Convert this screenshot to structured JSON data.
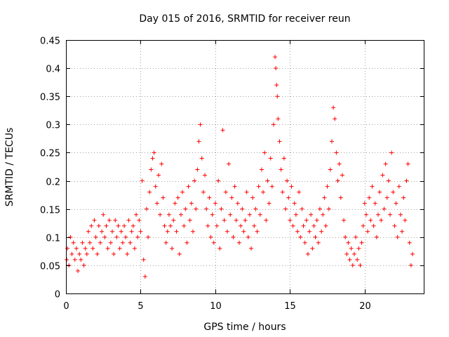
{
  "chart_data": {
    "type": "scatter",
    "title": "Day 015 of 2016, SRMTID for receiver reun",
    "xlabel": "GPS time / hours",
    "ylabel": "SRMTID / TECUs",
    "xlim": [
      0,
      24
    ],
    "ylim": [
      0,
      0.45
    ],
    "xticks": [
      0,
      5,
      10,
      15,
      20
    ],
    "xtick_labels": [
      "0",
      "5",
      "10",
      "15",
      "20"
    ],
    "yticks": [
      0,
      0.05,
      0.1,
      0.15,
      0.2,
      0.25,
      0.3,
      0.35,
      0.4,
      0.45
    ],
    "ytick_labels": [
      "0",
      "0.05",
      "0.1",
      "0.15",
      "0.2",
      "0.25",
      "0.3",
      "0.35",
      "0.4",
      "0.45"
    ],
    "grid": true,
    "marker": "plus",
    "color": "#ff0000",
    "series": [
      {
        "name": "SRMTID",
        "points": [
          [
            0.05,
            0.06
          ],
          [
            0.1,
            0.08
          ],
          [
            0.2,
            0.05
          ],
          [
            0.3,
            0.1
          ],
          [
            0.4,
            0.07
          ],
          [
            0.5,
            0.09
          ],
          [
            0.6,
            0.06
          ],
          [
            0.7,
            0.08
          ],
          [
            0.8,
            0.04
          ],
          [
            0.9,
            0.07
          ],
          [
            1.0,
            0.06
          ],
          [
            1.1,
            0.09
          ],
          [
            1.2,
            0.05
          ],
          [
            1.3,
            0.08
          ],
          [
            1.4,
            0.07
          ],
          [
            1.5,
            0.11
          ],
          [
            1.6,
            0.09
          ],
          [
            1.7,
            0.12
          ],
          [
            1.8,
            0.08
          ],
          [
            1.9,
            0.13
          ],
          [
            2.0,
            0.1
          ],
          [
            2.1,
            0.07
          ],
          [
            2.2,
            0.12
          ],
          [
            2.3,
            0.09
          ],
          [
            2.4,
            0.11
          ],
          [
            2.5,
            0.14
          ],
          [
            2.6,
            0.1
          ],
          [
            2.7,
            0.12
          ],
          [
            2.8,
            0.08
          ],
          [
            2.9,
            0.13
          ],
          [
            3.0,
            0.09
          ],
          [
            3.1,
            0.11
          ],
          [
            3.2,
            0.07
          ],
          [
            3.3,
            0.13
          ],
          [
            3.4,
            0.1
          ],
          [
            3.5,
            0.12
          ],
          [
            3.6,
            0.08
          ],
          [
            3.7,
            0.11
          ],
          [
            3.8,
            0.09
          ],
          [
            3.9,
            0.12
          ],
          [
            4.0,
            0.1
          ],
          [
            4.1,
            0.07
          ],
          [
            4.2,
            0.13
          ],
          [
            4.3,
            0.09
          ],
          [
            4.4,
            0.11
          ],
          [
            4.5,
            0.12
          ],
          [
            4.6,
            0.08
          ],
          [
            4.7,
            0.14
          ],
          [
            4.8,
            0.1
          ],
          [
            4.9,
            0.13
          ],
          [
            5.0,
            0.11
          ],
          [
            5.1,
            0.2
          ],
          [
            5.2,
            0.06
          ],
          [
            5.3,
            0.03
          ],
          [
            5.4,
            0.15
          ],
          [
            5.5,
            0.1
          ],
          [
            5.6,
            0.18
          ],
          [
            5.7,
            0.22
          ],
          [
            5.8,
            0.24
          ],
          [
            5.9,
            0.25
          ],
          [
            6.0,
            0.19
          ],
          [
            6.1,
            0.16
          ],
          [
            6.2,
            0.21
          ],
          [
            6.3,
            0.14
          ],
          [
            6.4,
            0.23
          ],
          [
            6.5,
            0.17
          ],
          [
            6.6,
            0.12
          ],
          [
            6.7,
            0.09
          ],
          [
            6.8,
            0.11
          ],
          [
            6.9,
            0.14
          ],
          [
            7.0,
            0.12
          ],
          [
            7.1,
            0.08
          ],
          [
            7.2,
            0.13
          ],
          [
            7.3,
            0.16
          ],
          [
            7.4,
            0.11
          ],
          [
            7.5,
            0.17
          ],
          [
            7.6,
            0.07
          ],
          [
            7.7,
            0.14
          ],
          [
            7.8,
            0.18
          ],
          [
            7.9,
            0.12
          ],
          [
            8.0,
            0.15
          ],
          [
            8.1,
            0.09
          ],
          [
            8.2,
            0.19
          ],
          [
            8.3,
            0.13
          ],
          [
            8.4,
            0.16
          ],
          [
            8.5,
            0.11
          ],
          [
            8.6,
            0.2
          ],
          [
            8.7,
            0.15
          ],
          [
            8.8,
            0.22
          ],
          [
            8.9,
            0.27
          ],
          [
            9.0,
            0.3
          ],
          [
            9.1,
            0.24
          ],
          [
            9.2,
            0.18
          ],
          [
            9.3,
            0.21
          ],
          [
            9.4,
            0.15
          ],
          [
            9.5,
            0.12
          ],
          [
            9.6,
            0.17
          ],
          [
            9.7,
            0.1
          ],
          [
            9.8,
            0.14
          ],
          [
            9.9,
            0.09
          ],
          [
            10.0,
            0.16
          ],
          [
            10.1,
            0.12
          ],
          [
            10.2,
            0.2
          ],
          [
            10.3,
            0.08
          ],
          [
            10.4,
            0.15
          ],
          [
            10.5,
            0.29
          ],
          [
            10.6,
            0.13
          ],
          [
            10.7,
            0.18
          ],
          [
            10.8,
            0.11
          ],
          [
            10.9,
            0.23
          ],
          [
            11.0,
            0.14
          ],
          [
            11.1,
            0.17
          ],
          [
            11.2,
            0.1
          ],
          [
            11.3,
            0.19
          ],
          [
            11.4,
            0.13
          ],
          [
            11.5,
            0.16
          ],
          [
            11.6,
            0.09
          ],
          [
            11.7,
            0.12
          ],
          [
            11.8,
            0.15
          ],
          [
            11.9,
            0.11
          ],
          [
            12.0,
            0.13
          ],
          [
            12.1,
            0.18
          ],
          [
            12.2,
            0.1
          ],
          [
            12.3,
            0.14
          ],
          [
            12.4,
            0.08
          ],
          [
            12.5,
            0.17
          ],
          [
            12.6,
            0.12
          ],
          [
            12.7,
            0.15
          ],
          [
            12.8,
            0.11
          ],
          [
            12.9,
            0.19
          ],
          [
            13.0,
            0.14
          ],
          [
            13.1,
            0.22
          ],
          [
            13.2,
            0.18
          ],
          [
            13.3,
            0.25
          ],
          [
            13.4,
            0.13
          ],
          [
            13.5,
            0.2
          ],
          [
            13.6,
            0.16
          ],
          [
            13.7,
            0.24
          ],
          [
            13.8,
            0.19
          ],
          [
            13.9,
            0.3
          ],
          [
            14.0,
            0.42
          ],
          [
            14.05,
            0.4
          ],
          [
            14.1,
            0.37
          ],
          [
            14.15,
            0.35
          ],
          [
            14.2,
            0.31
          ],
          [
            14.3,
            0.27
          ],
          [
            14.4,
            0.22
          ],
          [
            14.5,
            0.18
          ],
          [
            14.6,
            0.24
          ],
          [
            14.7,
            0.15
          ],
          [
            14.8,
            0.2
          ],
          [
            14.9,
            0.17
          ],
          [
            15.0,
            0.13
          ],
          [
            15.1,
            0.19
          ],
          [
            15.2,
            0.12
          ],
          [
            15.3,
            0.16
          ],
          [
            15.4,
            0.14
          ],
          [
            15.5,
            0.11
          ],
          [
            15.6,
            0.18
          ],
          [
            15.7,
            0.1
          ],
          [
            15.8,
            0.15
          ],
          [
            15.9,
            0.12
          ],
          [
            16.0,
            0.09
          ],
          [
            16.1,
            0.13
          ],
          [
            16.2,
            0.07
          ],
          [
            16.3,
            0.11
          ],
          [
            16.4,
            0.14
          ],
          [
            16.5,
            0.08
          ],
          [
            16.6,
            0.12
          ],
          [
            16.7,
            0.1
          ],
          [
            16.8,
            0.13
          ],
          [
            16.9,
            0.09
          ],
          [
            17.0,
            0.15
          ],
          [
            17.1,
            0.11
          ],
          [
            17.2,
            0.14
          ],
          [
            17.3,
            0.17
          ],
          [
            17.4,
            0.12
          ],
          [
            17.5,
            0.19
          ],
          [
            17.6,
            0.15
          ],
          [
            17.7,
            0.22
          ],
          [
            17.8,
            0.27
          ],
          [
            17.9,
            0.33
          ],
          [
            18.0,
            0.31
          ],
          [
            18.1,
            0.25
          ],
          [
            18.2,
            0.2
          ],
          [
            18.3,
            0.23
          ],
          [
            18.4,
            0.17
          ],
          [
            18.5,
            0.21
          ],
          [
            18.6,
            0.13
          ],
          [
            18.7,
            0.1
          ],
          [
            18.8,
            0.07
          ],
          [
            18.9,
            0.09
          ],
          [
            19.0,
            0.06
          ],
          [
            19.1,
            0.08
          ],
          [
            19.2,
            0.05
          ],
          [
            19.3,
            0.07
          ],
          [
            19.4,
            0.1
          ],
          [
            19.5,
            0.06
          ],
          [
            19.6,
            0.08
          ],
          [
            19.7,
            0.05
          ],
          [
            19.8,
            0.09
          ],
          [
            19.9,
            0.12
          ],
          [
            20.0,
            0.16
          ],
          [
            20.1,
            0.14
          ],
          [
            20.2,
            0.11
          ],
          [
            20.3,
            0.17
          ],
          [
            20.4,
            0.13
          ],
          [
            20.5,
            0.19
          ],
          [
            20.6,
            0.12
          ],
          [
            20.7,
            0.16
          ],
          [
            20.8,
            0.1
          ],
          [
            20.9,
            0.14
          ],
          [
            21.0,
            0.18
          ],
          [
            21.1,
            0.13
          ],
          [
            21.2,
            0.21
          ],
          [
            21.3,
            0.15
          ],
          [
            21.4,
            0.23
          ],
          [
            21.5,
            0.17
          ],
          [
            21.6,
            0.2
          ],
          [
            21.7,
            0.14
          ],
          [
            21.8,
            0.25
          ],
          [
            21.9,
            0.18
          ],
          [
            22.0,
            0.12
          ],
          [
            22.1,
            0.16
          ],
          [
            22.2,
            0.1
          ],
          [
            22.3,
            0.19
          ],
          [
            22.4,
            0.14
          ],
          [
            22.5,
            0.11
          ],
          [
            22.6,
            0.17
          ],
          [
            22.7,
            0.13
          ],
          [
            22.8,
            0.2
          ],
          [
            22.9,
            0.23
          ],
          [
            23.0,
            0.09
          ],
          [
            23.1,
            0.05
          ],
          [
            23.2,
            0.07
          ]
        ]
      }
    ]
  }
}
